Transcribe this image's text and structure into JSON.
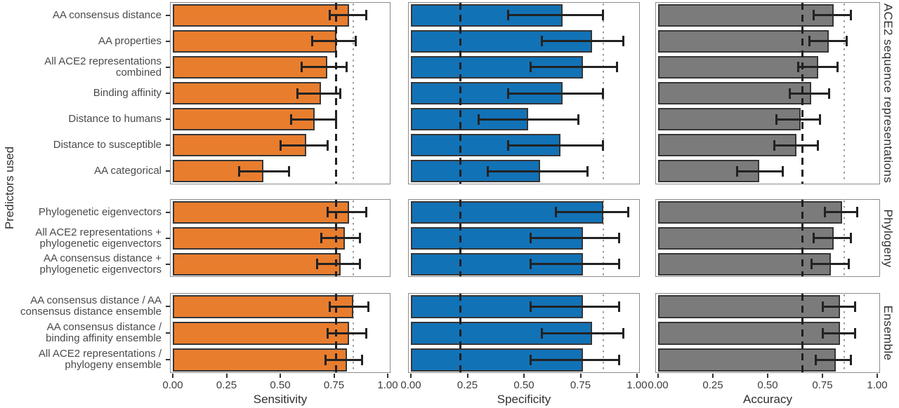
{
  "figure_title": "",
  "colors": {
    "sensitivity_bar": "#E87D2E",
    "specificity_bar": "#1272B6",
    "accuracy_bar": "#7B7B7B",
    "bar_outline": "#363636",
    "errorbar": "#222222",
    "dashed_reference": "#1F1F1F",
    "dotted_reference": "#9A9A9A",
    "panel_border": "#8C8C8C",
    "text": "#3D3D3D"
  },
  "chart_data": {
    "type": "bar",
    "orientation": "horizontal",
    "ylabel": "Predictors used",
    "xlim": [
      0,
      1
    ],
    "x_ticks": [
      0,
      0.25,
      0.5,
      0.75,
      1
    ],
    "x_tick_labels": [
      "0.00",
      "0.25",
      "0.50",
      "0.75",
      "1.00"
    ],
    "grid": "off",
    "legend": "none",
    "metrics": [
      {
        "name": "Sensitivity",
        "color": "#E87D2E",
        "dashed_ref": 0.76,
        "dotted_ref": 0.84
      },
      {
        "name": "Specificity",
        "color": "#1272B6",
        "dashed_ref": 0.22,
        "dotted_ref": 0.85
      },
      {
        "name": "Accuracy",
        "color": "#7B7B7B",
        "dashed_ref": 0.66,
        "dotted_ref": 0.85
      }
    ],
    "facets": [
      {
        "label": "ACE2 sequence representations",
        "rows": [
          {
            "predictor": "AA consensus distance",
            "metrics": [
              [
                0.82,
                0.73,
                0.9
              ],
              [
                0.67,
                0.43,
                0.85
              ],
              [
                0.8,
                0.71,
                0.88
              ]
            ]
          },
          {
            "predictor": "AA properties",
            "metrics": [
              [
                0.76,
                0.65,
                0.85
              ],
              [
                0.8,
                0.58,
                0.94
              ],
              [
                0.78,
                0.69,
                0.86
              ]
            ]
          },
          {
            "predictor": "All ACE2 representations\ncombined",
            "metrics": [
              [
                0.72,
                0.6,
                0.81
              ],
              [
                0.76,
                0.53,
                0.91
              ],
              [
                0.73,
                0.64,
                0.82
              ]
            ]
          },
          {
            "predictor": "Binding affinity",
            "metrics": [
              [
                0.69,
                0.58,
                0.78
              ],
              [
                0.67,
                0.43,
                0.85
              ],
              [
                0.7,
                0.6,
                0.78
              ]
            ]
          },
          {
            "predictor": "Distance to humans",
            "metrics": [
              [
                0.66,
                0.55,
                0.76
              ],
              [
                0.52,
                0.3,
                0.74
              ],
              [
                0.65,
                0.54,
                0.74
              ]
            ]
          },
          {
            "predictor": "Distance to susceptible",
            "metrics": [
              [
                0.62,
                0.5,
                0.72
              ],
              [
                0.66,
                0.43,
                0.85
              ],
              [
                0.63,
                0.53,
                0.73
              ]
            ]
          },
          {
            "predictor": "AA categorical",
            "metrics": [
              [
                0.42,
                0.31,
                0.54
              ],
              [
                0.57,
                0.34,
                0.78
              ],
              [
                0.46,
                0.36,
                0.57
              ]
            ]
          }
        ]
      },
      {
        "label": "Phylogeny",
        "rows": [
          {
            "predictor": "Phylogenetic eigenvectors",
            "metrics": [
              [
                0.82,
                0.72,
                0.9
              ],
              [
                0.85,
                0.64,
                0.96
              ],
              [
                0.84,
                0.76,
                0.91
              ]
            ]
          },
          {
            "predictor": "All ACE2 representations +\nphylogenetic eigenvectors",
            "metrics": [
              [
                0.8,
                0.69,
                0.87
              ],
              [
                0.76,
                0.53,
                0.92
              ],
              [
                0.8,
                0.71,
                0.88
              ]
            ]
          },
          {
            "predictor": "AA consensus distance +\nphylogenetic eigenvectors",
            "metrics": [
              [
                0.78,
                0.67,
                0.87
              ],
              [
                0.76,
                0.53,
                0.92
              ],
              [
                0.79,
                0.7,
                0.87
              ]
            ]
          }
        ]
      },
      {
        "label": "Ensemble",
        "rows": [
          {
            "predictor": "AA consensus distance / AA\nconsensus distance ensemble",
            "metrics": [
              [
                0.84,
                0.73,
                0.91
              ],
              [
                0.76,
                0.53,
                0.92
              ],
              [
                0.83,
                0.75,
                0.9
              ]
            ]
          },
          {
            "predictor": "AA consensus distance /\nbinding affinity ensemble",
            "metrics": [
              [
                0.82,
                0.72,
                0.9
              ],
              [
                0.8,
                0.58,
                0.94
              ],
              [
                0.83,
                0.75,
                0.9
              ]
            ]
          },
          {
            "predictor": "All ACE2 representations /\nphylogeny ensemble",
            "metrics": [
              [
                0.81,
                0.71,
                0.88
              ],
              [
                0.76,
                0.53,
                0.92
              ],
              [
                0.81,
                0.72,
                0.88
              ]
            ]
          }
        ]
      }
    ]
  }
}
